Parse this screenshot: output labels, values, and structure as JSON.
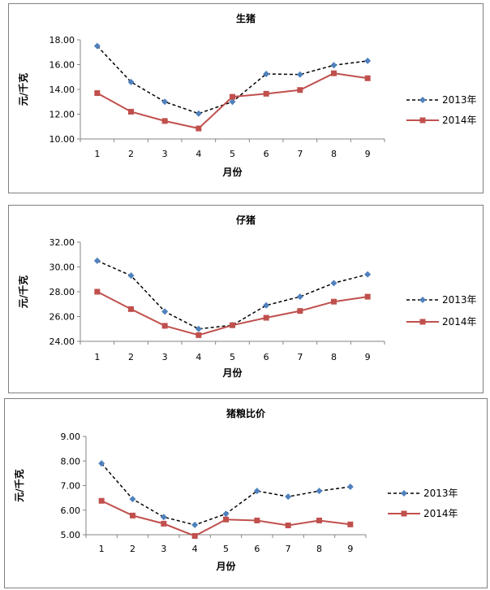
{
  "chart_data": [
    {
      "type": "line",
      "title": "生猪",
      "xlabel": "月份",
      "ylabel": "元/千克",
      "categories": [
        "1",
        "2",
        "3",
        "4",
        "5",
        "6",
        "7",
        "8",
        "9"
      ],
      "ylim": [
        10,
        18
      ],
      "yticks": [
        "10.00",
        "12.00",
        "14.00",
        "16.00",
        "18.00"
      ],
      "grid": false,
      "legend_position": "right",
      "series": [
        {
          "name": "2013年",
          "color": "#4f81bd",
          "line_color": "#000000",
          "style": "dashed",
          "marker": "diamond",
          "values": [
            17.5,
            14.6,
            13.0,
            12.05,
            13.0,
            15.25,
            15.2,
            15.95,
            16.3
          ]
        },
        {
          "name": "2014年",
          "color": "#c0504d",
          "line_color": "#c0504d",
          "style": "solid",
          "marker": "square",
          "values": [
            13.7,
            12.2,
            11.45,
            10.85,
            13.4,
            13.65,
            13.95,
            15.3,
            14.9
          ]
        }
      ]
    },
    {
      "type": "line",
      "title": "仔猪",
      "xlabel": "月份",
      "ylabel": "元/千克",
      "categories": [
        "1",
        "2",
        "3",
        "4",
        "5",
        "6",
        "7",
        "8",
        "9"
      ],
      "ylim": [
        24,
        32
      ],
      "yticks": [
        "24.00",
        "26.00",
        "28.00",
        "30.00",
        "32.00"
      ],
      "grid": false,
      "legend_position": "right",
      "series": [
        {
          "name": "2013年",
          "color": "#4f81bd",
          "line_color": "#000000",
          "style": "dashed",
          "marker": "diamond",
          "values": [
            30.5,
            29.3,
            26.4,
            25.0,
            25.3,
            26.9,
            27.6,
            28.7,
            29.4
          ]
        },
        {
          "name": "2014年",
          "color": "#c0504d",
          "line_color": "#c0504d",
          "style": "solid",
          "marker": "square",
          "values": [
            28.0,
            26.6,
            25.25,
            24.5,
            25.3,
            25.9,
            26.45,
            27.2,
            27.6
          ]
        }
      ]
    },
    {
      "type": "line",
      "title": "猪粮比价",
      "xlabel": "月份",
      "ylabel": "元/千克",
      "categories": [
        "1",
        "2",
        "3",
        "4",
        "5",
        "6",
        "7",
        "8",
        "9"
      ],
      "ylim": [
        5,
        9
      ],
      "yticks": [
        "5.00",
        "6.00",
        "7.00",
        "8.00",
        "9.00"
      ],
      "grid": false,
      "legend_position": "right",
      "series": [
        {
          "name": "2013年",
          "color": "#4f81bd",
          "line_color": "#000000",
          "style": "dashed",
          "marker": "diamond",
          "values": [
            7.9,
            6.45,
            5.72,
            5.4,
            5.85,
            6.78,
            6.55,
            6.78,
            6.95
          ]
        },
        {
          "name": "2014年",
          "color": "#c0504d",
          "line_color": "#c0504d",
          "style": "solid",
          "marker": "square",
          "values": [
            6.38,
            5.78,
            5.45,
            4.95,
            5.62,
            5.58,
            5.38,
            5.58,
            5.42
          ]
        }
      ]
    }
  ]
}
